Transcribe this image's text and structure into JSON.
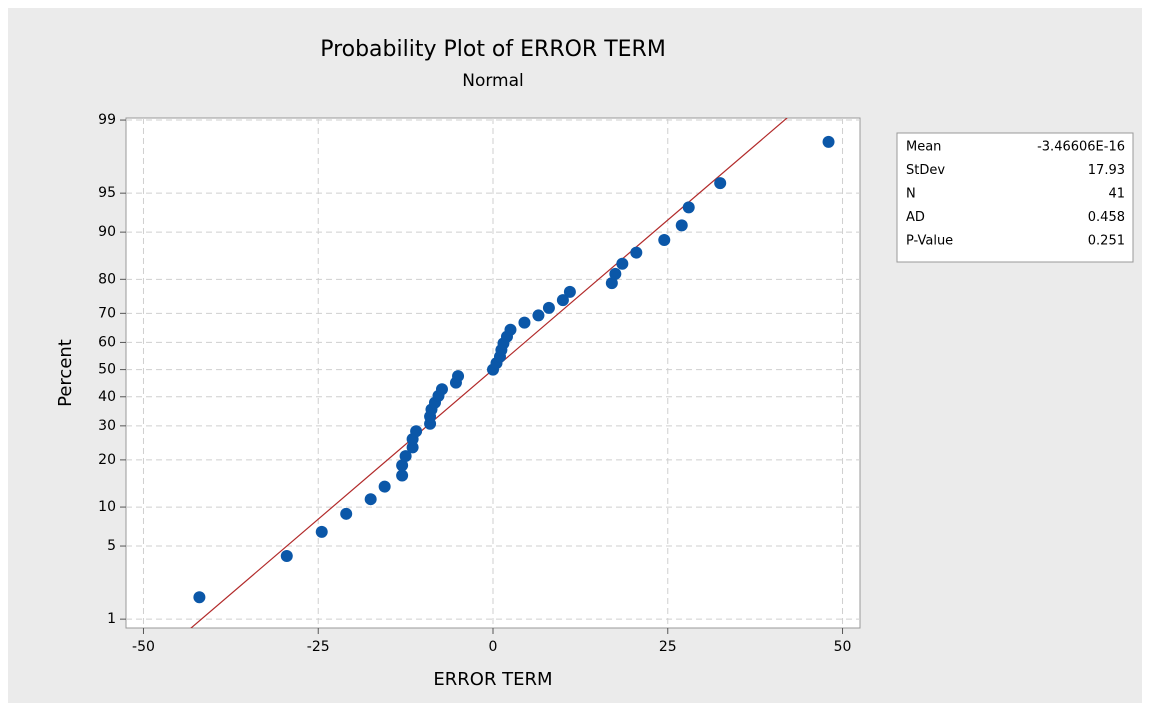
{
  "chart_data": {
    "type": "probability",
    "title": "Probability Plot of ERROR TERM",
    "subtitle": "Normal",
    "x_label": "ERROR TERM",
    "y_label": "Percent",
    "x": [
      -42,
      -29.5,
      -24.5,
      -21,
      -17.5,
      -15.5,
      -13,
      -13,
      -12.5,
      -11.5,
      -11.5,
      -11,
      -9,
      -9,
      -8.8,
      -8.3,
      -7.8,
      -7.3,
      -5.3,
      -5,
      0,
      0.5,
      1,
      1.2,
      1.5,
      2,
      2.5,
      4.5,
      6.5,
      8,
      10,
      11,
      17,
      17.5,
      18.5,
      20.5,
      24.5,
      27,
      28,
      32.5,
      48
    ],
    "values": [
      1.69,
      4.11,
      6.52,
      8.94,
      11.35,
      13.77,
      16.18,
      18.6,
      21.01,
      23.43,
      25.85,
      28.26,
      30.68,
      33.09,
      35.51,
      37.92,
      40.34,
      42.75,
      45.17,
      47.58,
      50,
      52.42,
      54.83,
      57.25,
      59.66,
      62.08,
      64.49,
      66.91,
      69.32,
      71.74,
      74.15,
      76.57,
      78.99,
      81.4,
      83.82,
      86.23,
      88.65,
      91.06,
      93.48,
      95.89,
      98.31
    ],
    "color": "#0b57a8",
    "line_color": "#b22a2a",
    "xlim": [
      -52.5,
      52.5
    ],
    "xticks": [
      -50,
      -25,
      0,
      25,
      50
    ],
    "ylim": [
      0.8,
      99.05
    ],
    "yticks": [
      1,
      5,
      10,
      20,
      30,
      40,
      50,
      60,
      70,
      80,
      90,
      95,
      99
    ],
    "y_scale": "normal-probability",
    "grid": true,
    "stats": [
      {
        "label": "Mean",
        "value": {
          "value": -3.46606e-16,
          "label": "-3.46606E-16"
        }
      },
      {
        "label": "StDev",
        "value": 17.93
      },
      {
        "label": "N",
        "value": 41
      },
      {
        "label": "AD",
        "value": 0.458
      },
      {
        "label": "P-Value",
        "value": 0.251
      }
    ]
  }
}
